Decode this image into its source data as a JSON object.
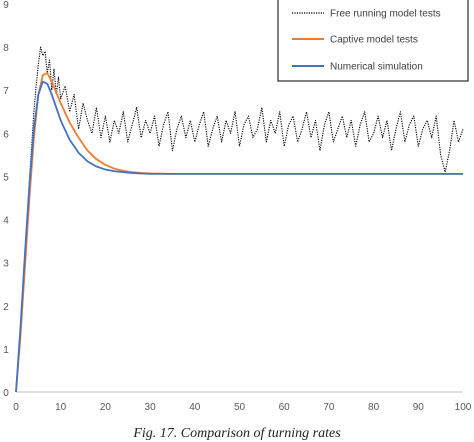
{
  "caption": "Fig. 17. Comparison of turning rates",
  "chart_data": {
    "type": "line",
    "title": "",
    "xlabel": "",
    "ylabel": "",
    "xlim": [
      0,
      100
    ],
    "ylim": [
      0,
      9
    ],
    "x_ticks": [
      "0",
      "10",
      "20",
      "30",
      "40",
      "50",
      "60",
      "70",
      "80",
      "90",
      "100"
    ],
    "y_ticks": [
      "0",
      "1",
      "2",
      "3",
      "4",
      "5",
      "6",
      "7",
      "8",
      "9"
    ],
    "grid": false,
    "legend_position": "top-right",
    "series": [
      {
        "name": "Free running model tests",
        "color": "#000000",
        "style": "dotted",
        "x": [
          0,
          0.5,
          1,
          1.5,
          2,
          2.5,
          3,
          3.5,
          4,
          4.5,
          5,
          5.5,
          6,
          6.5,
          7,
          7.5,
          8,
          8.5,
          9,
          9.5,
          10,
          11,
          12,
          13,
          14,
          15,
          16,
          17,
          18,
          19,
          20,
          21,
          22,
          23,
          24,
          25,
          26,
          27,
          28,
          29,
          30,
          31,
          32,
          33,
          34,
          35,
          36,
          37,
          38,
          39,
          40,
          41,
          42,
          43,
          44,
          45,
          46,
          47,
          48,
          49,
          50,
          51,
          52,
          53,
          54,
          55,
          56,
          57,
          58,
          59,
          60,
          61,
          62,
          63,
          64,
          65,
          66,
          67,
          68,
          69,
          70,
          71,
          72,
          73,
          74,
          75,
          76,
          77,
          78,
          79,
          80,
          81,
          82,
          83,
          84,
          85,
          86,
          87,
          88,
          89,
          90,
          91,
          92,
          93,
          94,
          95,
          96,
          97,
          98,
          99,
          100
        ],
        "values": [
          0.0,
          0.6,
          1.3,
          2.2,
          3.1,
          4.0,
          4.9,
          5.7,
          6.5,
          7.1,
          7.6,
          8.0,
          7.8,
          7.9,
          7.4,
          7.7,
          7.0,
          7.5,
          6.9,
          7.3,
          6.8,
          7.1,
          6.5,
          6.9,
          6.1,
          6.7,
          6.3,
          6.0,
          6.6,
          5.9,
          6.4,
          5.8,
          6.3,
          6.0,
          6.5,
          5.8,
          6.2,
          6.6,
          5.9,
          6.3,
          6.0,
          6.4,
          5.7,
          6.2,
          6.5,
          5.6,
          6.1,
          6.4,
          5.9,
          6.3,
          5.8,
          6.2,
          6.5,
          5.7,
          6.1,
          6.4,
          5.8,
          6.3,
          6.0,
          6.5,
          5.7,
          6.2,
          6.4,
          5.9,
          6.1,
          6.6,
          5.8,
          6.3,
          6.0,
          6.5,
          5.7,
          6.2,
          6.4,
          5.8,
          6.1,
          6.5,
          5.9,
          6.3,
          5.6,
          6.2,
          6.5,
          5.8,
          6.1,
          6.4,
          5.9,
          6.3,
          5.7,
          6.2,
          6.5,
          5.8,
          6.0,
          6.4,
          5.9,
          6.3,
          5.6,
          6.1,
          6.5,
          5.8,
          6.2,
          6.4,
          5.7,
          6.1,
          6.3,
          5.9,
          6.4,
          5.5,
          5.1,
          5.6,
          6.3,
          5.8,
          6.1
        ]
      },
      {
        "name": "Captive model tests",
        "color": "#ED7D31",
        "style": "solid",
        "x": [
          0,
          1,
          2,
          3,
          4,
          5,
          6,
          7,
          8,
          9,
          10,
          12,
          14,
          16,
          18,
          20,
          22,
          24,
          26,
          28,
          30,
          35,
          40,
          50,
          60,
          70,
          80,
          90,
          100
        ],
        "values": [
          0.0,
          1.3,
          2.9,
          4.5,
          5.9,
          6.9,
          7.35,
          7.4,
          7.2,
          6.95,
          6.7,
          6.25,
          5.9,
          5.6,
          5.4,
          5.27,
          5.18,
          5.13,
          5.1,
          5.08,
          5.07,
          5.06,
          5.06,
          5.06,
          5.06,
          5.06,
          5.06,
          5.06,
          5.06
        ]
      },
      {
        "name": "Numerical simulation",
        "color": "#4472C4",
        "style": "solid",
        "x": [
          0,
          1,
          2,
          3,
          4,
          5,
          6,
          7,
          8,
          9,
          10,
          12,
          14,
          16,
          18,
          20,
          22,
          24,
          26,
          28,
          30,
          35,
          40,
          50,
          60,
          70,
          80,
          90,
          100
        ],
        "values": [
          0.0,
          1.5,
          3.2,
          4.8,
          6.1,
          6.9,
          7.2,
          7.15,
          6.9,
          6.6,
          6.3,
          5.85,
          5.55,
          5.35,
          5.23,
          5.16,
          5.12,
          5.1,
          5.08,
          5.07,
          5.06,
          5.06,
          5.06,
          5.06,
          5.06,
          5.06,
          5.06,
          5.06,
          5.06
        ]
      }
    ]
  }
}
